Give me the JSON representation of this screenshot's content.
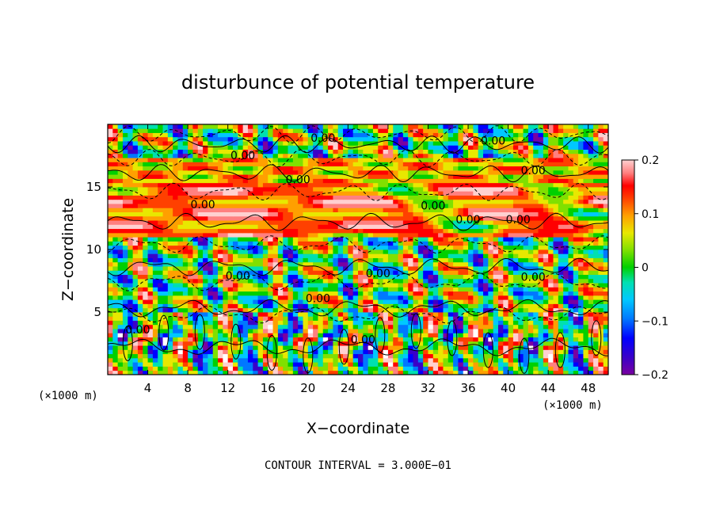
{
  "chart_data": {
    "type": "heatmap",
    "title": "disturbunce of potential temperature",
    "xlabel": "X−coordinate",
    "ylabel": "Z−coordinate",
    "x_unit_left": "(×1000 m)",
    "x_unit_right": "(×1000 m)",
    "footer": "CONTOUR INTERVAL = 3.000E−01",
    "xlim": [
      0,
      50
    ],
    "ylim": [
      0,
      20
    ],
    "x_ticks": [
      4,
      8,
      12,
      16,
      20,
      24,
      28,
      32,
      36,
      40,
      44,
      48
    ],
    "y_ticks": [
      5,
      10,
      15
    ],
    "colorbar": {
      "range": [
        -0.2,
        0.2
      ],
      "ticks": [
        "0.2",
        "0.1",
        "0",
        "−0.1",
        "−0.2"
      ],
      "tick_values": [
        0.2,
        0.1,
        0,
        -0.1,
        -0.2
      ]
    },
    "contour_labels": [
      {
        "text": "0.00",
        "x": 21.5,
        "z": 18.6
      },
      {
        "text": "0.00",
        "x": 38.5,
        "z": 18.4
      },
      {
        "text": "0.00",
        "x": 13.5,
        "z": 17.2
      },
      {
        "text": "0.00",
        "x": 42.5,
        "z": 16.0
      },
      {
        "text": "0.00",
        "x": 19.0,
        "z": 15.3
      },
      {
        "text": "0.00",
        "x": 9.5,
        "z": 13.3
      },
      {
        "text": "0.00",
        "x": 32.5,
        "z": 13.2
      },
      {
        "text": "0.00",
        "x": 36.0,
        "z": 12.1
      },
      {
        "text": "0.00",
        "x": 41.0,
        "z": 12.1
      },
      {
        "text": "0.00",
        "x": 13.0,
        "z": 7.6
      },
      {
        "text": "0.00",
        "x": 27.0,
        "z": 7.8
      },
      {
        "text": "0.00",
        "x": 42.5,
        "z": 7.5
      },
      {
        "text": "0.00",
        "x": 21.0,
        "z": 5.8
      },
      {
        "text": "0.00",
        "x": 3.0,
        "z": 3.3
      },
      {
        "text": "0.00",
        "x": 25.5,
        "z": 2.5
      }
    ]
  },
  "colors": {
    "scale": [
      "#7a00a0",
      "#3a00c8",
      "#0000ff",
      "#0078ff",
      "#00c8ff",
      "#00e0b0",
      "#00d000",
      "#80e000",
      "#e8e800",
      "#ffa000",
      "#ff4000",
      "#ff0000",
      "#ff8080",
      "#ffd0d0"
    ],
    "background": "#ffffff",
    "contour": "#000000"
  }
}
